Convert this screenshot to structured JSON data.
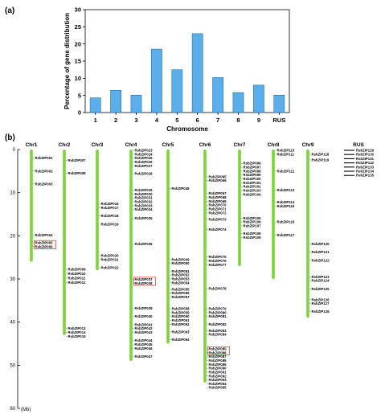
{
  "panel_a_label": "(a)",
  "panel_b_label": "(b)",
  "chart_data": [
    {
      "type": "bar",
      "categories": [
        "1",
        "2",
        "3",
        "4",
        "5",
        "6",
        "7",
        "8",
        "9",
        "RUS"
      ],
      "values": [
        4.3,
        6.5,
        5.1,
        18.5,
        12.5,
        23.0,
        10.2,
        5.8,
        8.0,
        5.1
      ],
      "title": "",
      "xlabel": "Chromosome",
      "ylabel": "Percentage of gene distribution",
      "ylim": [
        0,
        30
      ],
      "yticks": [
        0,
        5,
        10,
        15,
        20,
        25,
        30
      ],
      "bar_color": "#5aaee9",
      "grid": false
    },
    {
      "type": "chromosome_map",
      "ylabel": "(Mb)",
      "ylim": [
        0,
        60
      ],
      "yticks": [
        0,
        10,
        20,
        30,
        40,
        50,
        60
      ],
      "chromosome_color": "#7cd43a",
      "highlight_color": "#e0301e",
      "chromosomes": [
        {
          "name": "Chr1",
          "length": 26,
          "genes": [
            {
              "name": "RsbZIP001",
              "pos": 2.0
            },
            {
              "name": "RsbZIP002",
              "pos": 5.0
            },
            {
              "name": "RsbZIP003",
              "pos": 8.0
            },
            {
              "name": "RsbZIP004",
              "pos": 19.8
            },
            {
              "name": "RsbZIP005",
              "pos": 21.6,
              "highlight": true
            },
            {
              "name": "RsbZIP006",
              "pos": 22.5,
              "highlight": true
            }
          ]
        },
        {
          "name": "Chr2",
          "length": 43,
          "genes": [
            {
              "name": "RsbZIP007",
              "pos": 2.5
            },
            {
              "name": "RsbZIP008",
              "pos": 5.5
            },
            {
              "name": "RsbZIP009",
              "pos": 27.8
            },
            {
              "name": "RsbZIP010",
              "pos": 28.8
            },
            {
              "name": "RsbZIP011",
              "pos": 29.8
            },
            {
              "name": "RsbZIP012",
              "pos": 30.8
            },
            {
              "name": "RsbZIP013",
              "pos": 41.5
            },
            {
              "name": "RsbZIP014",
              "pos": 42.4
            },
            {
              "name": "RsbZIP015",
              "pos": 43.3
            }
          ]
        },
        {
          "name": "Chr3",
          "length": 28,
          "genes": [
            {
              "name": "RsbZIP016",
              "pos": 12.6
            },
            {
              "name": "RsbZIP017",
              "pos": 13.5
            },
            {
              "name": "RsbZIP018",
              "pos": 15.4
            },
            {
              "name": "RsbZIP019",
              "pos": 17.3
            },
            {
              "name": "RsbZIP020",
              "pos": 24.6
            },
            {
              "name": "RsbZIP021",
              "pos": 25.5
            },
            {
              "name": "RsbZIP022",
              "pos": 27.4
            }
          ]
        },
        {
          "name": "Chr4",
          "length": 49,
          "genes": [
            {
              "name": "RsbZIP023",
              "pos": 0.2
            },
            {
              "name": "RsbZIP024",
              "pos": 1.1
            },
            {
              "name": "RsbZIP025",
              "pos": 2.0
            },
            {
              "name": "RsbZIP026",
              "pos": 2.9
            },
            {
              "name": "RsbZIP027",
              "pos": 3.8
            },
            {
              "name": "RsbZIP028",
              "pos": 5.6
            },
            {
              "name": "RsbZIP029",
              "pos": 9.4
            },
            {
              "name": "RsbZIP030",
              "pos": 10.3
            },
            {
              "name": "RsbZIP031",
              "pos": 11.2
            },
            {
              "name": "RsbZIP032",
              "pos": 12.1
            },
            {
              "name": "RsbZIP033",
              "pos": 13.0
            },
            {
              "name": "RsbZIP034",
              "pos": 13.9
            },
            {
              "name": "RsbZIP035",
              "pos": 15.9
            },
            {
              "name": "RsbZIP036",
              "pos": 21.9
            },
            {
              "name": "RsbZIP037",
              "pos": 30.1,
              "highlight": true
            },
            {
              "name": "RsbZIP038",
              "pos": 31.0,
              "highlight": true
            },
            {
              "name": "RsbZIP039",
              "pos": 36.8
            },
            {
              "name": "RsbZIP040",
              "pos": 38.7
            },
            {
              "name": "RsbZIP041",
              "pos": 40.6
            },
            {
              "name": "RsbZIP042",
              "pos": 41.5
            },
            {
              "name": "RsbZIP043",
              "pos": 42.4
            },
            {
              "name": "RsbZIP044",
              "pos": 44.3
            },
            {
              "name": "RsbZIP045",
              "pos": 45.2
            },
            {
              "name": "RsbZIP046",
              "pos": 46.1
            },
            {
              "name": "RsbZIP047",
              "pos": 48.0
            }
          ]
        },
        {
          "name": "Chr5",
          "length": 45,
          "genes": [
            {
              "name": "RsbZIP048",
              "pos": 9.0
            },
            {
              "name": "RsbZIP049",
              "pos": 25.5
            },
            {
              "name": "RsbZIP050",
              "pos": 26.4
            },
            {
              "name": "RsbZIP051",
              "pos": 28.2
            },
            {
              "name": "RsbZIP052",
              "pos": 29.1
            },
            {
              "name": "RsbZIP053",
              "pos": 30.0
            },
            {
              "name": "RsbZIP054",
              "pos": 30.9
            },
            {
              "name": "RsbZIP055",
              "pos": 32.4
            },
            {
              "name": "RsbZIP056",
              "pos": 33.3
            },
            {
              "name": "RsbZIP057",
              "pos": 34.2
            },
            {
              "name": "RsbZIP058",
              "pos": 36.9
            },
            {
              "name": "RsbZIP059",
              "pos": 37.8
            },
            {
              "name": "RsbZIP060",
              "pos": 38.7
            },
            {
              "name": "RsbZIP061",
              "pos": 39.6
            },
            {
              "name": "RsbZIP062",
              "pos": 40.5
            },
            {
              "name": "RsbZIP063",
              "pos": 42.3
            },
            {
              "name": "RsbZIP064",
              "pos": 44.1
            }
          ]
        },
        {
          "name": "Chr6",
          "length": 54,
          "genes": [
            {
              "name": "RsbZIP065",
              "pos": 6.3
            },
            {
              "name": "RsbZIP066",
              "pos": 7.2
            },
            {
              "name": "RsbZIP067",
              "pos": 10.2
            },
            {
              "name": "RsbZIP068",
              "pos": 11.1
            },
            {
              "name": "RsbZIP069",
              "pos": 12.0
            },
            {
              "name": "RsbZIP070",
              "pos": 12.9
            },
            {
              "name": "RsbZIP071",
              "pos": 13.8
            },
            {
              "name": "RsbZIP072",
              "pos": 14.7
            },
            {
              "name": "RsbZIP073",
              "pos": 16.2
            },
            {
              "name": "RsbZIP074",
              "pos": 18.5
            },
            {
              "name": "RsbZIP075",
              "pos": 24.9
            },
            {
              "name": "RsbZIP076",
              "pos": 25.8
            },
            {
              "name": "RsbZIP077",
              "pos": 26.7
            },
            {
              "name": "RsbZIP078",
              "pos": 32.2
            },
            {
              "name": "RsbZIP079",
              "pos": 36.9
            },
            {
              "name": "RsbZIP080",
              "pos": 37.8
            },
            {
              "name": "RsbZIP081",
              "pos": 38.7
            },
            {
              "name": "RsbZIP082",
              "pos": 40.5
            },
            {
              "name": "RsbZIP083",
              "pos": 42.0
            },
            {
              "name": "RsbZIP084",
              "pos": 42.9
            },
            {
              "name": "RsbZIP085",
              "pos": 46.2,
              "highlight": true
            },
            {
              "name": "RsbZIP086",
              "pos": 47.1,
              "highlight": true
            },
            {
              "name": "RsbZIP087",
              "pos": 48.0
            },
            {
              "name": "RsbZIP088",
              "pos": 48.9
            },
            {
              "name": "RsbZIP089",
              "pos": 49.8
            },
            {
              "name": "RsbZIP090",
              "pos": 50.7
            },
            {
              "name": "RsbZIP091",
              "pos": 51.6
            },
            {
              "name": "RsbZIP092",
              "pos": 52.5
            },
            {
              "name": "RsbZIP093",
              "pos": 53.4
            },
            {
              "name": "RsbZIP094",
              "pos": 54.3
            },
            {
              "name": "RsbZIP095",
              "pos": 55.2
            }
          ]
        },
        {
          "name": "Chr7",
          "length": 27,
          "genes": [
            {
              "name": "RsbZIP096",
              "pos": 3.2
            },
            {
              "name": "RsbZIP097",
              "pos": 4.1
            },
            {
              "name": "RsbZIP098",
              "pos": 5.0
            },
            {
              "name": "RsbZIP099",
              "pos": 5.9
            },
            {
              "name": "RsbZIP100",
              "pos": 6.8
            },
            {
              "name": "RsbZIP101",
              "pos": 7.7
            },
            {
              "name": "RsbZIP102",
              "pos": 8.6
            },
            {
              "name": "RsbZIP103",
              "pos": 9.5
            },
            {
              "name": "RsbZIP104",
              "pos": 10.4
            },
            {
              "name": "RsbZIP105",
              "pos": 15.9
            },
            {
              "name": "RsbZIP106",
              "pos": 16.8
            },
            {
              "name": "RsbZIP107",
              "pos": 17.7
            },
            {
              "name": "RsbZIP108",
              "pos": 19.5
            },
            {
              "name": "RsbZIP109",
              "pos": 20.4
            }
          ]
        },
        {
          "name": "Chr8",
          "length": 30,
          "genes": [
            {
              "name": "RsbZIP110",
              "pos": 0.2
            },
            {
              "name": "RsbZIP111",
              "pos": 1.1
            },
            {
              "name": "RsbZIP112",
              "pos": 5.0
            },
            {
              "name": "RsbZIP113",
              "pos": 9.4
            },
            {
              "name": "RsbZIP114",
              "pos": 12.2
            },
            {
              "name": "RsbZIP115",
              "pos": 13.1
            },
            {
              "name": "RsbZIP116",
              "pos": 16.8
            },
            {
              "name": "RsbZIP117",
              "pos": 19.8
            }
          ]
        },
        {
          "name": "Chr9",
          "length": 39,
          "genes": [
            {
              "name": "RsbZIP118",
              "pos": 1.1
            },
            {
              "name": "RsbZIP119",
              "pos": 2.4
            },
            {
              "name": "RsbZIP120",
              "pos": 21.9
            },
            {
              "name": "RsbZIP121",
              "pos": 23.8
            },
            {
              "name": "RsbZIP122",
              "pos": 25.7
            },
            {
              "name": "RsbZIP123",
              "pos": 29.5
            },
            {
              "name": "RsbZIP124",
              "pos": 30.4
            },
            {
              "name": "RsbZIP125",
              "pos": 32.3
            },
            {
              "name": "RsbZIP126",
              "pos": 34.8
            },
            {
              "name": "RsbZIP127",
              "pos": 35.7
            },
            {
              "name": "RsbZIP128",
              "pos": 37.5
            }
          ]
        }
      ],
      "rus": {
        "name": "RUS",
        "genes": [
          "RsbZIP129",
          "RsbZIP130",
          "RsbZIP131",
          "RsbZIP132",
          "RsbZIP133",
          "RsbZIP134",
          "RsbZIP135"
        ]
      }
    }
  ]
}
